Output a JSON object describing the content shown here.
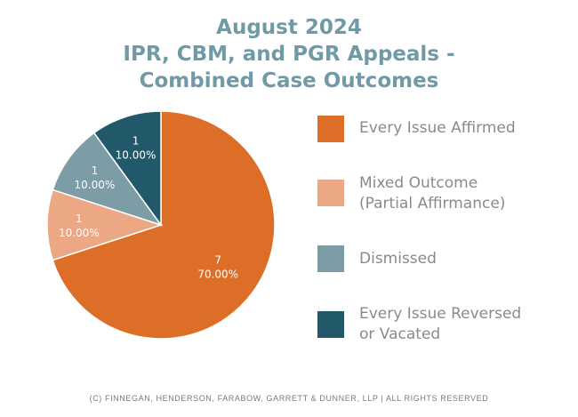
{
  "chart_data": {
    "type": "pie",
    "title_lines": [
      "August 2024",
      "IPR, CBM, and PGR Appeals -",
      "Combined Case Outcomes"
    ],
    "slices": [
      {
        "name": "Every Issue Affirmed",
        "legend": "Every Issue Affirmed",
        "value": 7,
        "value_label": "7",
        "percent": "70.00%",
        "color": "#dd6e27"
      },
      {
        "name": "Mixed Outcome (Partial Affirmance)",
        "legend": "Mixed Outcome\n(Partial Affirmance)",
        "value": 1,
        "value_label": "1",
        "percent": "10.00%",
        "color": "#eca784"
      },
      {
        "name": "Dismissed",
        "legend": "Dismissed",
        "value": 1,
        "value_label": "1",
        "percent": "10.00%",
        "color": "#7d9da6"
      },
      {
        "name": "Every Issue Reversed or Vacated",
        "legend": "Every Issue Reversed\nor Vacated",
        "value": 1,
        "value_label": "1",
        "percent": "10.00%",
        "color": "#21596a"
      }
    ]
  },
  "footer": "(C) FINNEGAN, HENDERSON, FARABOW, GARRETT & DUNNER, LLP | ALL RIGHTS RESERVED"
}
